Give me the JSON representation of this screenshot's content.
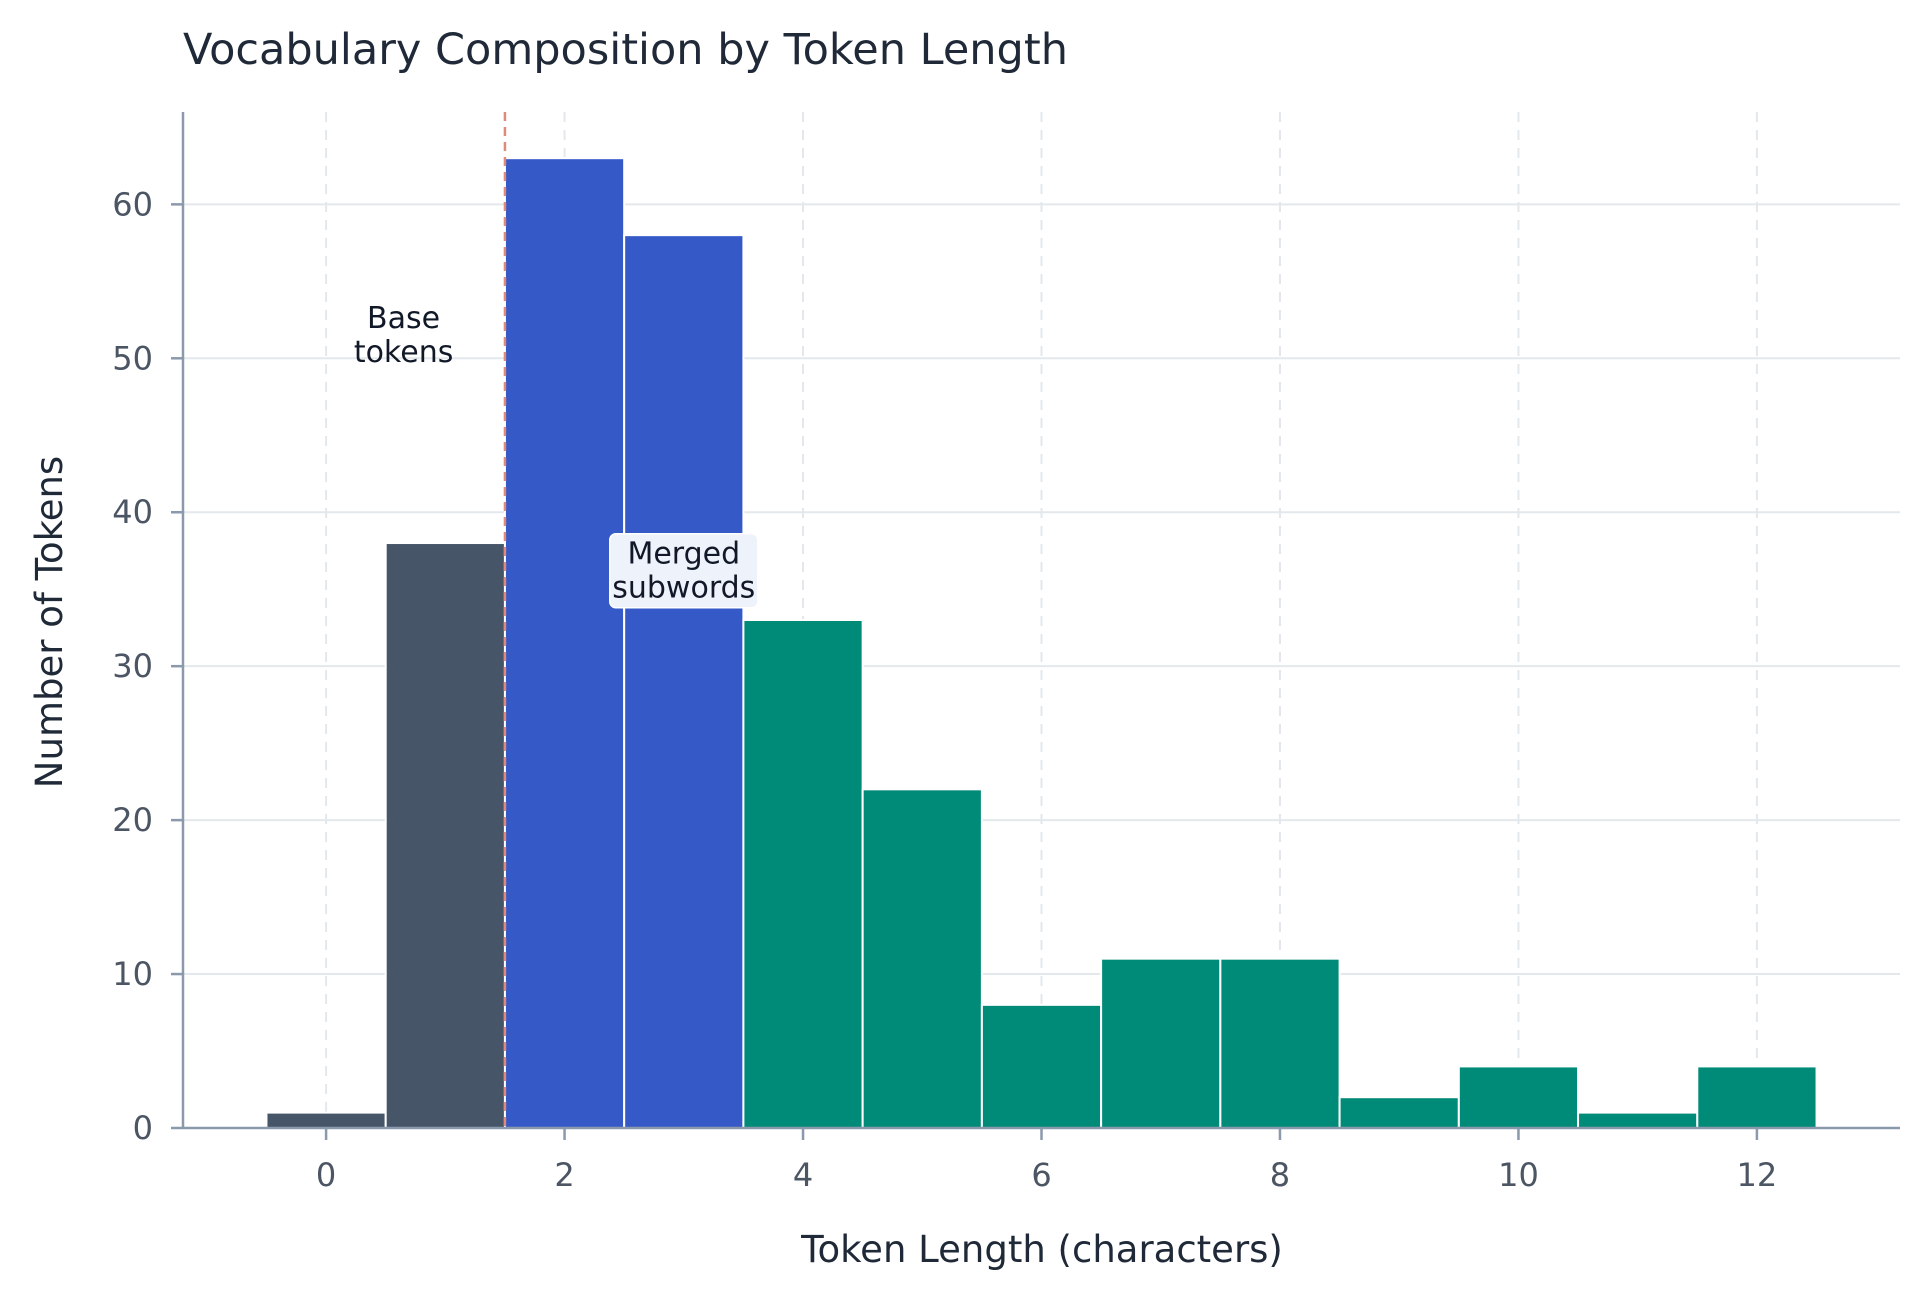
{
  "chart_data": {
    "type": "bar",
    "title": "Vocabulary Composition by Token Length",
    "xlabel": "Token Length (characters)",
    "ylabel": "Number of Tokens",
    "xlim": [
      -1.2,
      13.2
    ],
    "ylim": [
      0,
      66
    ],
    "x_ticks": [
      0,
      2,
      4,
      6,
      8,
      10,
      12
    ],
    "y_ticks": [
      0,
      10,
      20,
      30,
      40,
      50,
      60
    ],
    "grid": true,
    "legend": "none",
    "colors": {
      "base": "#475569",
      "merged_short": "#3659c8",
      "merged_long": "#008a78",
      "divider": "#e08a7a",
      "annotation_bg": "#eef2fb"
    },
    "groups": [
      "base",
      "merged_short",
      "merged_long"
    ],
    "bins": [
      {
        "x": 0,
        "value": 1,
        "group": "base"
      },
      {
        "x": 1,
        "value": 38,
        "group": "base"
      },
      {
        "x": 2,
        "value": 63,
        "group": "merged_short"
      },
      {
        "x": 3,
        "value": 58,
        "group": "merged_short"
      },
      {
        "x": 4,
        "value": 33,
        "group": "merged_long"
      },
      {
        "x": 5,
        "value": 22,
        "group": "merged_long"
      },
      {
        "x": 6,
        "value": 8,
        "group": "merged_long"
      },
      {
        "x": 7,
        "value": 11,
        "group": "merged_long"
      },
      {
        "x": 8,
        "value": 11,
        "group": "merged_long"
      },
      {
        "x": 9,
        "value": 2,
        "group": "merged_long"
      },
      {
        "x": 10,
        "value": 4,
        "group": "merged_long"
      },
      {
        "x": 11,
        "value": 1,
        "group": "merged_long"
      },
      {
        "x": 12,
        "value": 4,
        "group": "merged_long"
      }
    ],
    "divider_x": 1.5,
    "annotations": [
      {
        "lines": [
          "Base",
          "tokens"
        ],
        "x": 0.65,
        "y": 51.5,
        "boxed": false
      },
      {
        "lines": [
          "Merged",
          "subwords"
        ],
        "x": 3.0,
        "y": 36.2,
        "boxed": true
      }
    ]
  }
}
